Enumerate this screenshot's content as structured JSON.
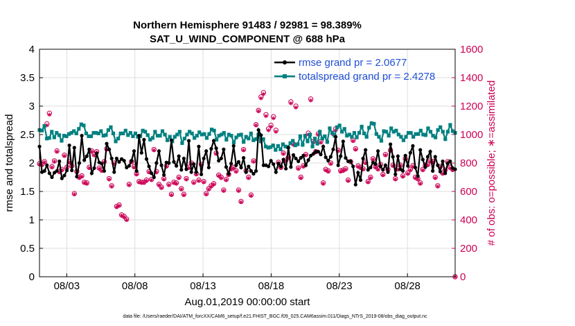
{
  "chart_data": {
    "type": "line",
    "title": [
      "Northern Hemisphere 91483 / 92981 = 98.389%",
      "SAT_U_WIND_COMPONENT @ 688 hPa"
    ],
    "xlabel": "Aug.01,2019 00:00:00 start",
    "ylabel_left": "rmse and totalspread",
    "ylabel_right": "# of obs: o=possible; ∗=assimilated",
    "ylim_left": [
      0,
      4
    ],
    "ylim_right": [
      0,
      1600
    ],
    "xlim_days": [
      1.0,
      31.5
    ],
    "yticks_left": [
      "0",
      "0.5",
      "1",
      "1.5",
      "2",
      "2.5",
      "3",
      "3.5",
      "4"
    ],
    "yticks_right": [
      "0",
      "200",
      "400",
      "600",
      "800",
      "1000",
      "1200",
      "1400",
      "1600"
    ],
    "xticks": [
      {
        "label": "08/03",
        "day": 3
      },
      {
        "label": "08/08",
        "day": 8
      },
      {
        "label": "08/13",
        "day": 13
      },
      {
        "label": "08/18",
        "day": 18
      },
      {
        "label": "08/23",
        "day": 23
      },
      {
        "label": "08/28",
        "day": 28
      }
    ],
    "grid": true,
    "legend_location": "top-right",
    "series": [
      {
        "name": "rmse",
        "legend_label": "rmse grand pr = 2.0677",
        "color": "#000000",
        "axis": "left",
        "values": [
          2.29,
          1.84,
          1.86,
          1.96,
          1.82,
          1.75,
          1.83,
          1.86,
          2.03,
          1.73,
          1.78,
          1.87,
          2.31,
          1.87,
          2.27,
          1.76,
          2.0,
          2.48,
          2.05,
          2.12,
          2.24,
          1.82,
          1.91,
          2.17,
          2.01,
          1.99,
          1.86,
          2.34,
          2.24,
          2.08,
          1.84,
          2.08,
          2.02,
          2.07,
          2.04,
          1.92,
          1.95,
          2.04,
          2.21,
          1.86,
          2.48,
          2.18,
          2.41,
          2.07,
          1.94,
          1.82,
          1.75,
          2.0,
          2.21,
          1.96,
          1.79,
          2.01,
          2.0,
          2.4,
          2.02,
          1.95,
          2.12,
          1.88,
          2.08,
          1.89,
          2.39,
          1.84,
          1.98,
          1.84,
          2.29,
          1.8,
          2.08,
          2.21,
          1.92,
          2.25,
          2.39,
          2.26,
          2.04,
          2.08,
          2.24,
          1.93,
          1.81,
          1.99,
          2.3,
          1.96,
          2.02,
          1.92,
          2.09,
          1.84,
          1.94,
          1.86,
          1.81,
          1.86,
          2.58,
          2.49,
          1.96,
          1.96,
          1.94,
          2.04,
          1.98,
          1.84,
          1.99,
          1.94,
          2.06,
          1.9,
          2.27,
          1.93,
          2.14,
          2.08,
          2.03,
          2.09,
          2.13,
          1.96,
          2.05,
          2.13,
          2.16,
          2.2,
          2.2,
          2.15,
          2.29,
          2.1,
          2.04,
          2.11,
          2.24,
          2.46,
          1.96,
          2.12,
          2.38,
          2.09,
          2.03,
          2.03,
          1.94,
          1.62,
          1.83,
          1.7,
          2.08,
          2.23,
          1.88,
          1.92,
          2.01,
          1.98,
          2.21,
          1.94,
          1.88,
          1.96,
          1.84,
          2.33,
          2.11,
          1.8,
          2.12,
          1.89,
          1.86,
          2.13,
          1.95,
          2.18,
          2.3,
          1.92,
          1.77,
          2.23,
          2.06,
          1.93,
          2.11,
          2.2,
          1.86,
          2.11,
          1.96,
          1.85,
          2.03,
          1.82,
          1.99,
          2.03,
          1.91,
          1.89
        ]
      },
      {
        "name": "totalspread",
        "legend_label": "totalspread grand pr = 2.4278",
        "color": "#008080",
        "axis": "left",
        "values": [
          2.58,
          2.57,
          2.65,
          2.43,
          2.44,
          2.55,
          2.45,
          2.53,
          2.49,
          2.39,
          2.48,
          2.47,
          2.51,
          2.53,
          2.56,
          2.52,
          2.6,
          2.68,
          2.66,
          2.52,
          2.47,
          2.47,
          2.53,
          2.53,
          2.52,
          2.56,
          2.48,
          2.49,
          2.58,
          2.63,
          2.52,
          2.38,
          2.43,
          2.52,
          2.52,
          2.57,
          2.49,
          2.53,
          2.47,
          2.52,
          2.46,
          2.47,
          2.57,
          2.55,
          2.49,
          2.41,
          2.44,
          2.55,
          2.48,
          2.48,
          2.56,
          2.5,
          2.4,
          2.46,
          2.38,
          2.46,
          2.5,
          2.55,
          2.35,
          2.43,
          2.5,
          2.55,
          2.52,
          2.44,
          2.48,
          2.54,
          2.5,
          2.51,
          2.44,
          2.51,
          2.59,
          2.57,
          2.41,
          2.48,
          2.5,
          2.53,
          2.41,
          2.5,
          2.48,
          2.36,
          2.45,
          2.49,
          2.5,
          2.37,
          2.46,
          2.43,
          2.52,
          2.4,
          2.42,
          2.5,
          2.38,
          2.42,
          2.29,
          2.27,
          2.28,
          2.31,
          2.23,
          2.3,
          2.24,
          2.33,
          2.29,
          2.28,
          2.35,
          2.39,
          2.31,
          2.33,
          2.47,
          2.32,
          2.48,
          2.38,
          2.5,
          2.29,
          2.43,
          2.34,
          2.55,
          2.43,
          2.47,
          2.37,
          2.61,
          2.53,
          2.48,
          2.63,
          2.66,
          2.55,
          2.6,
          2.48,
          2.5,
          2.46,
          2.53,
          2.45,
          2.53,
          2.64,
          2.52,
          2.46,
          2.62,
          2.7,
          2.69,
          2.51,
          2.46,
          2.39,
          2.56,
          2.55,
          2.48,
          2.61,
          2.55,
          2.57,
          2.5,
          2.46,
          2.4,
          2.46,
          2.53,
          2.53,
          2.46,
          2.51,
          2.51,
          2.57,
          2.5,
          2.49,
          2.61,
          2.55,
          2.48,
          2.45,
          2.58,
          2.63,
          2.55,
          2.42,
          2.55,
          2.67,
          2.56,
          2.53
        ]
      },
      {
        "name": "obs possible",
        "marker": "o",
        "color": "#cc0055",
        "axis": "right",
        "values": [
          795,
          790,
          810,
          1075,
          1150,
          775,
          815,
          885,
          740,
          755,
          855,
          770,
          810,
          780,
          585,
          740,
          700,
          710,
          665,
          660,
          770,
          885,
          860,
          880,
          765,
          750,
          810,
          900,
          690,
          640,
          800,
          495,
          505,
          435,
          425,
          405,
          650,
          810,
          775,
          725,
          670,
          665,
          665,
          680,
          740,
          685,
          895,
          740,
          650,
          630,
          690,
          780,
          650,
          580,
          665,
          660,
          700,
          620,
          580,
          690,
          770,
          800,
          665,
          725,
          680,
          790,
          670,
          585,
          620,
          640,
          655,
          870,
          715,
          700,
          610,
          685,
          720,
          760,
          770,
          745,
          610,
          530,
          895,
          745,
          700,
          575,
          815,
          1070,
          1170,
          1265,
          1295,
          1140,
          1040,
          1065,
          1125,
          1030,
          805,
          770,
          870,
          820,
          840,
          1230,
          935,
          1200,
          765,
          700,
          780,
          860,
          1010,
          1250,
          950,
          880,
          1005,
          950,
          660,
          755,
          745,
          800,
          1010,
          1040,
          890,
          745,
          750,
          760,
          680,
          810,
          960,
          900,
          780,
          770,
          760,
          805,
          670,
          700,
          830,
          775,
          760,
          790,
          720,
          860,
          755,
          890,
          785,
          690,
          760,
          785,
          710,
          830,
          730,
          755,
          780,
          700,
          690,
          660,
          755,
          785,
          790,
          815,
          810,
          700,
          640,
          775,
          730,
          750,
          810,
          770,
          755,
          0
        ]
      },
      {
        "name": "obs assimilated",
        "marker": "*",
        "color": "#cc0055",
        "axis": "right",
        "values": [
          790,
          785,
          805,
          1065,
          1140,
          770,
          810,
          880,
          735,
          750,
          850,
          765,
          805,
          775,
          580,
          735,
          695,
          705,
          660,
          655,
          765,
          880,
          855,
          875,
          760,
          745,
          805,
          895,
          685,
          635,
          795,
          490,
          500,
          430,
          420,
          400,
          645,
          805,
          770,
          720,
          665,
          660,
          660,
          675,
          735,
          680,
          890,
          735,
          645,
          625,
          685,
          775,
          645,
          575,
          660,
          655,
          695,
          615,
          575,
          685,
          765,
          795,
          660,
          720,
          675,
          785,
          665,
          580,
          615,
          635,
          650,
          865,
          710,
          695,
          605,
          680,
          715,
          755,
          765,
          740,
          605,
          525,
          890,
          740,
          695,
          570,
          810,
          1065,
          1165,
          1255,
          1285,
          1130,
          1030,
          1055,
          1115,
          1020,
          800,
          765,
          865,
          815,
          835,
          1220,
          930,
          1190,
          760,
          695,
          775,
          855,
          1000,
          1240,
          945,
          875,
          1000,
          945,
          655,
          750,
          740,
          795,
          1000,
          1030,
          885,
          740,
          745,
          755,
          675,
          805,
          955,
          895,
          775,
          765,
          755,
          800,
          665,
          695,
          825,
          770,
          755,
          785,
          715,
          855,
          750,
          885,
          780,
          685,
          755,
          780,
          705,
          825,
          725,
          750,
          775,
          695,
          685,
          655,
          750,
          780,
          785,
          810,
          805,
          695,
          635,
          770,
          725,
          745,
          805,
          765,
          750,
          0
        ]
      }
    ]
  },
  "figure_footnote": "data file: /Users/raeder/DAI/ATM_forcXX/CAM6_setup/f.e21.FHIST_BGC.f09_025.CAM6assim.011/Diags_NTrS_2019-08/obs_diag_output.nc"
}
